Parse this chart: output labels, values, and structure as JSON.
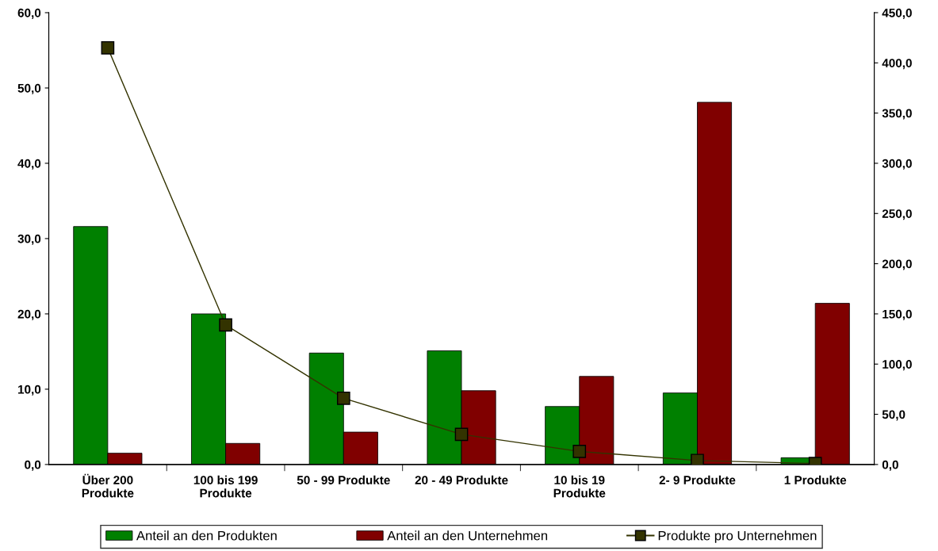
{
  "chart_data": {
    "type": "bar",
    "categories": [
      "Über 200\nProdukte",
      "100 bis 199\nProdukte",
      "50 - 99 Produkte",
      "20 - 49 Produkte",
      "10 bis 19\nProdukte",
      "2- 9 Produkte",
      "1 Produkte"
    ],
    "series": [
      {
        "name": "Anteil an den Produkten",
        "color": "#008000",
        "values": [
          31.6,
          20.0,
          14.8,
          15.1,
          7.7,
          9.5,
          0.9
        ]
      },
      {
        "name": "Anteil an den Unternehmen",
        "color": "#800000",
        "values": [
          1.5,
          2.8,
          4.3,
          9.8,
          11.7,
          48.1,
          21.4
        ]
      },
      {
        "name": "Produkte pro Unternehmen",
        "color": "#333300",
        "type": "line",
        "axis": "y2",
        "marker": "square",
        "values": [
          415,
          139,
          66,
          30,
          13,
          4,
          1
        ]
      }
    ],
    "ylim": [
      0,
      60
    ],
    "yticks": [
      {
        "value": 0,
        "label": "0,0"
      },
      {
        "value": 10,
        "label": "10,0"
      },
      {
        "value": 20,
        "label": "20,0"
      },
      {
        "value": 30,
        "label": "30,0"
      },
      {
        "value": 40,
        "label": "40,0"
      },
      {
        "value": 50,
        "label": "50,0"
      },
      {
        "value": 60,
        "label": "60,0"
      }
    ],
    "y2lim": [
      0,
      450
    ],
    "y2ticks": [
      {
        "value": 0,
        "label": "0,0"
      },
      {
        "value": 50,
        "label": "50,0"
      },
      {
        "value": 100,
        "label": "100,0"
      },
      {
        "value": 150,
        "label": "150,0"
      },
      {
        "value": 200,
        "label": "200,0"
      },
      {
        "value": 250,
        "label": "250,0"
      },
      {
        "value": 300,
        "label": "300,0"
      },
      {
        "value": 350,
        "label": "350,0"
      },
      {
        "value": 400,
        "label": "400,0"
      },
      {
        "value": 450,
        "label": "450,0"
      }
    ],
    "legend": "bottom",
    "grid": false
  }
}
